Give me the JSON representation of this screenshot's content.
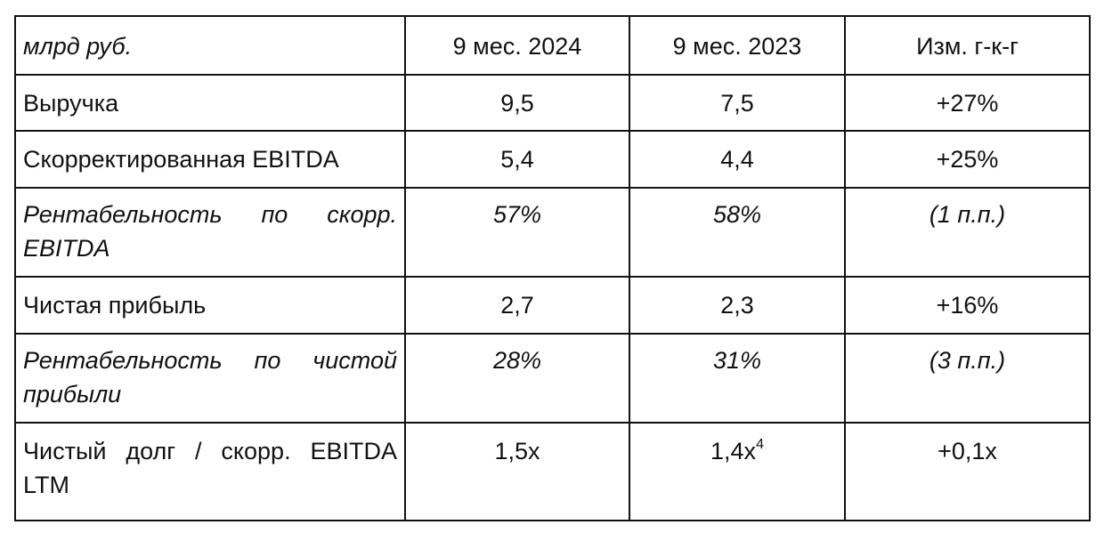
{
  "table": {
    "header": {
      "unit": "млрд руб.",
      "col1": "9 мес. 2024",
      "col2": "9 мес. 2023",
      "col3": "Изм. г-к-г"
    },
    "rows": [
      {
        "label": "Выручка",
        "v2024": "9,5",
        "v2023": "7,5",
        "change": "+27%"
      },
      {
        "label": "Скорректированная EBITDA",
        "v2024": "5,4",
        "v2023": "4,4",
        "change": "+25%"
      },
      {
        "label": "Рентабельность по скорр. EBITDA",
        "v2024": "57%",
        "v2023": "58%",
        "change": "(1 п.п.)"
      },
      {
        "label": "Чистая прибыль",
        "v2024": "2,7",
        "v2023": "2,3",
        "change": "+16%"
      },
      {
        "label": "Рентабельность по чистой прибыли",
        "v2024": "28%",
        "v2023": "31%",
        "change": "(3 п.п.)"
      },
      {
        "label": "Чистый долг / скорр. EBITDA LTM",
        "v2024": "1,5x",
        "v2023": "1,4x",
        "v2023_footnote": "4",
        "change": "+0,1x"
      }
    ]
  }
}
